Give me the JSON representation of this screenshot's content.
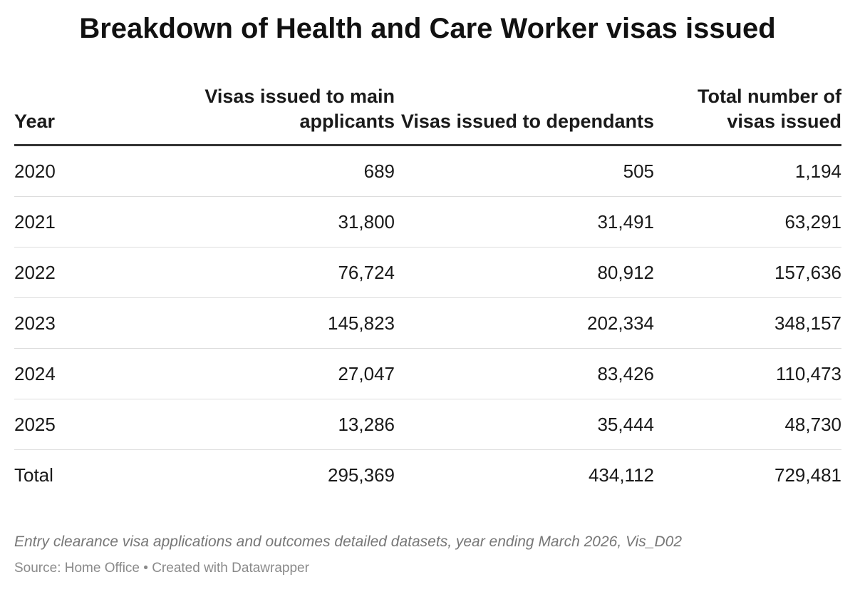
{
  "chart_data": {
    "type": "table",
    "title": "Breakdown of Health and Care Worker visas issued",
    "columns": [
      "Year",
      "Visas issued to main applicants",
      "Visas issued to dependants",
      "Total number of visas issued"
    ],
    "rows": [
      {
        "year": "2020",
        "main": "689",
        "dependants": "505",
        "total": "1,194"
      },
      {
        "year": "2021",
        "main": "31,800",
        "dependants": "31,491",
        "total": "63,291"
      },
      {
        "year": "2022",
        "main": "76,724",
        "dependants": "80,912",
        "total": "157,636"
      },
      {
        "year": "2023",
        "main": "145,823",
        "dependants": "202,334",
        "total": "348,157"
      },
      {
        "year": "2024",
        "main": "27,047",
        "dependants": "83,426",
        "total": "110,473"
      },
      {
        "year": "2025",
        "main": "13,286",
        "dependants": "35,444",
        "total": "48,730"
      },
      {
        "year": "Total",
        "main": "295,369",
        "dependants": "434,112",
        "total": "729,481"
      }
    ],
    "notes": "Entry clearance visa applications and outcomes detailed datasets, year ending March 2026, Vis_D02",
    "source": "Source: Home Office • Created with Datawrapper"
  }
}
